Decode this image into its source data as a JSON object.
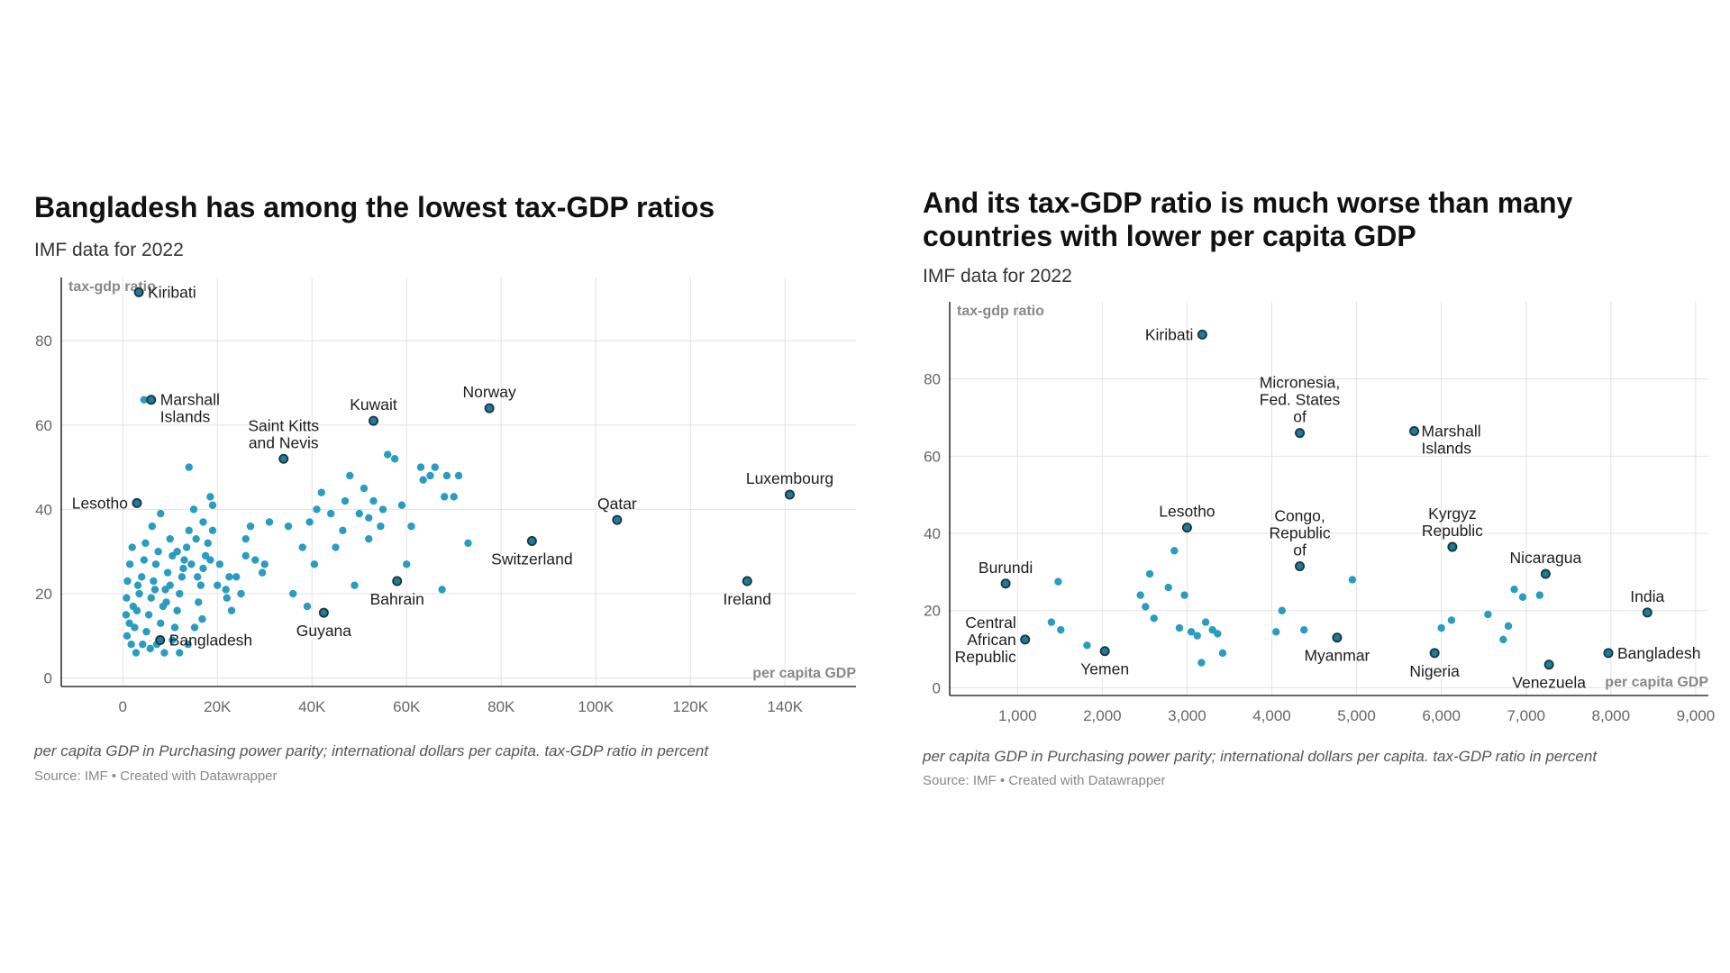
{
  "charts": [
    {
      "title": "Bangladesh has among the lowest tax-GDP ratios",
      "subtitle": "IMF data for 2022",
      "notes": "per capita GDP in Purchasing power parity; international dollars per capita. tax-GDP ratio in percent",
      "source": "Source: IMF • Created with Datawrapper"
    },
    {
      "title": "And its tax-GDP ratio is much worse than many countries with lower per capita GDP",
      "subtitle": "IMF data for 2022",
      "notes": "per capita GDP in Purchasing power parity; international dollars per capita. tax-GDP ratio in percent",
      "source": "Source: IMF • Created with Datawrapper"
    }
  ],
  "colors": {
    "point": "#2a9cc0",
    "highlight": "#1f7b96",
    "outline": "#1b3440",
    "grid": "#e3e3e3",
    "axis": "#333333"
  },
  "chart_data": [
    {
      "type": "scatter",
      "title": "Bangladesh has among the lowest tax-GDP ratios",
      "subtitle": "IMF data for 2022",
      "xlabel": "per capita GDP",
      "ylabel": "tax-gdp ratio",
      "xlim": [
        -13000,
        155000
      ],
      "ylim": [
        -2,
        95
      ],
      "xticks": [
        0,
        20000,
        40000,
        60000,
        80000,
        100000,
        120000,
        140000
      ],
      "xticklabels": [
        "0",
        "20K",
        "40K",
        "60K",
        "80K",
        "100K",
        "120K",
        "140K"
      ],
      "yticks": [
        0,
        20,
        40,
        60,
        80
      ],
      "yticklabels": [
        "0",
        "20",
        "40",
        "60",
        "80"
      ],
      "grid": true,
      "labeled_points": [
        {
          "name": "Kiribati",
          "x": 3400,
          "y": 91.5,
          "anchor": "right"
        },
        {
          "name": "Marshall Islands",
          "x": 6000,
          "y": 66,
          "anchor": "right"
        },
        {
          "name": "Saint Kitts and Nevis",
          "x": 34000,
          "y": 52,
          "anchor": "above"
        },
        {
          "name": "Kuwait",
          "x": 53000,
          "y": 61,
          "anchor": "above"
        },
        {
          "name": "Norway",
          "x": 77500,
          "y": 64,
          "anchor": "above"
        },
        {
          "name": "Lesotho",
          "x": 3000,
          "y": 41.5,
          "anchor": "left"
        },
        {
          "name": "Qatar",
          "x": 104500,
          "y": 37.5,
          "anchor": "above"
        },
        {
          "name": "Luxembourg",
          "x": 141000,
          "y": 43.5,
          "anchor": "above"
        },
        {
          "name": "Switzerland",
          "x": 86500,
          "y": 32.5,
          "anchor": "below"
        },
        {
          "name": "Bahrain",
          "x": 58000,
          "y": 23,
          "anchor": "below"
        },
        {
          "name": "Ireland",
          "x": 132000,
          "y": 23,
          "anchor": "below"
        },
        {
          "name": "Guyana",
          "x": 42500,
          "y": 15.5,
          "anchor": "below"
        },
        {
          "name": "Bangladesh",
          "x": 7900,
          "y": 9,
          "anchor": "right"
        }
      ],
      "points": [
        [
          4500,
          66
        ],
        [
          15000,
          40
        ],
        [
          28000,
          28
        ],
        [
          35000,
          36
        ],
        [
          38000,
          31
        ],
        [
          39500,
          37
        ],
        [
          41000,
          40
        ],
        [
          42000,
          44
        ],
        [
          44000,
          39
        ],
        [
          47000,
          42
        ],
        [
          48000,
          48
        ],
        [
          50000,
          39
        ],
        [
          51000,
          45
        ],
        [
          52000,
          38
        ],
        [
          53000,
          42
        ],
        [
          54500,
          36
        ],
        [
          55000,
          40
        ],
        [
          56000,
          53
        ],
        [
          57500,
          52
        ],
        [
          59000,
          41
        ],
        [
          60000,
          27
        ],
        [
          61000,
          36
        ],
        [
          63000,
          50
        ],
        [
          63500,
          47
        ],
        [
          65000,
          48
        ],
        [
          66000,
          50
        ],
        [
          68000,
          43
        ],
        [
          68500,
          48
        ],
        [
          70000,
          43
        ],
        [
          71000,
          48
        ],
        [
          73000,
          32
        ],
        [
          49000,
          22
        ],
        [
          52000,
          33
        ],
        [
          39000,
          17
        ],
        [
          36000,
          20
        ],
        [
          30000,
          27
        ],
        [
          26000,
          29
        ],
        [
          27000,
          36
        ],
        [
          24000,
          24
        ],
        [
          22000,
          19
        ],
        [
          20000,
          22
        ],
        [
          19000,
          41
        ],
        [
          18500,
          43
        ],
        [
          18000,
          32
        ],
        [
          17500,
          29
        ],
        [
          17000,
          26
        ],
        [
          16500,
          22
        ],
        [
          16000,
          18
        ],
        [
          15500,
          33
        ],
        [
          14500,
          27
        ],
        [
          14000,
          35
        ],
        [
          13500,
          31
        ],
        [
          13000,
          28
        ],
        [
          12500,
          24
        ],
        [
          12000,
          20
        ],
        [
          11500,
          16
        ],
        [
          11000,
          12
        ],
        [
          10500,
          29
        ],
        [
          10000,
          33
        ],
        [
          9500,
          25
        ],
        [
          9000,
          21
        ],
        [
          8500,
          17
        ],
        [
          8000,
          13
        ],
        [
          7500,
          30
        ],
        [
          7000,
          27
        ],
        [
          6500,
          23
        ],
        [
          6000,
          19
        ],
        [
          5500,
          15
        ],
        [
          5000,
          11
        ],
        [
          4500,
          28
        ],
        [
          4000,
          24
        ],
        [
          3500,
          20
        ],
        [
          3000,
          16
        ],
        [
          2500,
          12
        ],
        [
          2000,
          31
        ],
        [
          1500,
          27
        ],
        [
          1000,
          23
        ],
        [
          800,
          19
        ],
        [
          700,
          15
        ],
        [
          900,
          10
        ],
        [
          1800,
          8
        ],
        [
          2800,
          6
        ],
        [
          4200,
          8
        ],
        [
          5800,
          7
        ],
        [
          7200,
          8
        ],
        [
          8800,
          6
        ],
        [
          10500,
          9
        ],
        [
          12000,
          6
        ],
        [
          13800,
          8
        ],
        [
          15200,
          12
        ],
        [
          16800,
          14
        ],
        [
          18500,
          28
        ],
        [
          20500,
          27
        ],
        [
          21800,
          21
        ],
        [
          23000,
          16
        ],
        [
          25000,
          20
        ],
        [
          19000,
          35
        ],
        [
          17000,
          37
        ],
        [
          14000,
          50
        ],
        [
          10000,
          22
        ],
        [
          11500,
          30
        ],
        [
          9200,
          18
        ],
        [
          6200,
          36
        ],
        [
          8000,
          39
        ],
        [
          4800,
          32
        ],
        [
          3200,
          22
        ],
        [
          2200,
          17
        ],
        [
          1400,
          13
        ],
        [
          6800,
          21
        ],
        [
          12800,
          26
        ],
        [
          15800,
          24
        ],
        [
          22500,
          24
        ],
        [
          40500,
          27
        ],
        [
          45000,
          31
        ],
        [
          46500,
          35
        ],
        [
          31000,
          37
        ],
        [
          67500,
          21
        ],
        [
          29500,
          25
        ],
        [
          26000,
          33
        ]
      ]
    },
    {
      "type": "scatter",
      "title": "And its tax-GDP ratio is much worse than many countries with lower per capita GDP",
      "subtitle": "IMF data for 2022",
      "xlabel": "per capita GDP",
      "ylabel": "tax-gdp ratio",
      "xlim": [
        200,
        9150
      ],
      "ylim": [
        -2,
        100
      ],
      "xticks": [
        1000,
        2000,
        3000,
        4000,
        5000,
        6000,
        7000,
        8000,
        9000
      ],
      "xticklabels": [
        "1,000",
        "2,000",
        "3,000",
        "4,000",
        "5,000",
        "6,000",
        "7,000",
        "8,000",
        "9,000"
      ],
      "yticks": [
        0,
        20,
        40,
        60,
        80
      ],
      "yticklabels": [
        "0",
        "20",
        "40",
        "60",
        "80"
      ],
      "grid": true,
      "labeled_points": [
        {
          "name": "Kiribati",
          "x": 3180,
          "y": 91.5,
          "anchor": "left"
        },
        {
          "name": "Micronesia, Fed. States of",
          "x": 4330,
          "y": 66,
          "anchor": "above"
        },
        {
          "name": "Marshall Islands",
          "x": 5680,
          "y": 66.5,
          "anchor": "belowright"
        },
        {
          "name": "Lesotho",
          "x": 3000,
          "y": 41.5,
          "anchor": "above"
        },
        {
          "name": "Congo, Republic of",
          "x": 4330,
          "y": 31.5,
          "anchor": "above"
        },
        {
          "name": "Kyrgyz Republic",
          "x": 6130,
          "y": 36.5,
          "anchor": "above"
        },
        {
          "name": "Nicaragua",
          "x": 7230,
          "y": 29.5,
          "anchor": "above"
        },
        {
          "name": "Burundi",
          "x": 860,
          "y": 27,
          "anchor": "above"
        },
        {
          "name": "India",
          "x": 8430,
          "y": 19.5,
          "anchor": "above"
        },
        {
          "name": "Central African Republic",
          "x": 1090,
          "y": 12.5,
          "anchor": "left"
        },
        {
          "name": "Yemen",
          "x": 2030,
          "y": 9.5,
          "anchor": "below"
        },
        {
          "name": "Myanmar",
          "x": 4770,
          "y": 13,
          "anchor": "below"
        },
        {
          "name": "Nigeria",
          "x": 5920,
          "y": 9,
          "anchor": "below"
        },
        {
          "name": "Venezuela",
          "x": 7270,
          "y": 6,
          "anchor": "below"
        },
        {
          "name": "Bangladesh",
          "x": 7970,
          "y": 9,
          "anchor": "right"
        }
      ],
      "points": [
        [
          1400,
          17
        ],
        [
          1480,
          27.5
        ],
        [
          1510,
          15
        ],
        [
          1820,
          11
        ],
        [
          2450,
          24
        ],
        [
          2510,
          21
        ],
        [
          2560,
          29.5
        ],
        [
          2610,
          18
        ],
        [
          2780,
          26
        ],
        [
          2850,
          35.5
        ],
        [
          2910,
          15.5
        ],
        [
          2970,
          24
        ],
        [
          3050,
          14.5
        ],
        [
          3120,
          13.5
        ],
        [
          3170,
          6.5
        ],
        [
          3220,
          17
        ],
        [
          3300,
          15
        ],
        [
          3360,
          14
        ],
        [
          3420,
          9
        ],
        [
          4050,
          14.5
        ],
        [
          4120,
          20
        ],
        [
          4380,
          15
        ],
        [
          4950,
          28
        ],
        [
          6000,
          15.5
        ],
        [
          6120,
          17.5
        ],
        [
          6550,
          19
        ],
        [
          6730,
          12.5
        ],
        [
          6790,
          16
        ],
        [
          6860,
          25.5
        ],
        [
          6960,
          23.5
        ],
        [
          7160,
          24
        ]
      ]
    }
  ]
}
